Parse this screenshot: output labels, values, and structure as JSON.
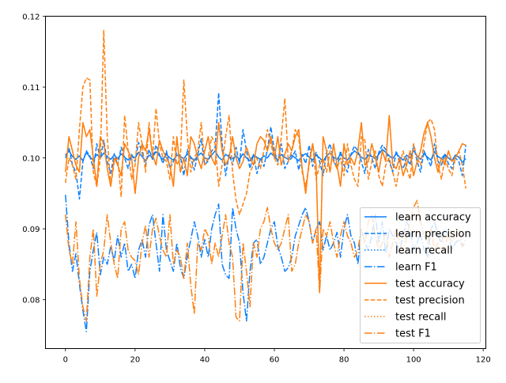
{
  "chart_data": {
    "type": "line",
    "title": "",
    "xlabel": "",
    "ylabel": "",
    "xlim": [
      -5.75,
      120.75
    ],
    "ylim": [
      0.0731,
      0.12
    ],
    "x_start": 0,
    "x_step": 1,
    "xticks": [
      0,
      20,
      40,
      60,
      80,
      100,
      120
    ],
    "xtick_labels": [
      "0",
      "20",
      "40",
      "60",
      "80",
      "100",
      "120"
    ],
    "yticks": [
      0.08,
      0.09,
      0.1,
      0.11,
      0.12
    ],
    "ytick_labels": [
      "0.08",
      "0.09",
      "0.10",
      "0.11",
      "0.12"
    ],
    "grid": false,
    "legend_position": "lower-right",
    "colors": {
      "learn": "#0a7fff",
      "test": "#ff7f0e"
    },
    "series": [
      {
        "name": "learn accuracy",
        "group": "learn",
        "style": "solid",
        "values": [
          0.1004,
          0.101,
          0.1002,
          0.0998,
          0.1003,
          0.0996,
          0.1008,
          0.1001,
          0.0997,
          0.1005,
          0.1,
          0.1007,
          0.1002,
          0.0998,
          0.1004,
          0.0999,
          0.1006,
          0.1001,
          0.0997,
          0.1003,
          0.1,
          0.1008,
          0.1002,
          0.0996,
          0.1004,
          0.1001,
          0.1009,
          0.1003,
          0.0998,
          0.1005,
          0.1,
          0.0997,
          0.1004,
          0.1002,
          0.0999,
          0.1006,
          0.1001,
          0.0996,
          0.1003,
          0.1007,
          0.1,
          0.0998,
          0.1004,
          0.101,
          0.1001,
          0.0997,
          0.1005,
          0.1002,
          0.0999,
          0.1003,
          0.0998,
          0.1006,
          0.1,
          0.0996,
          0.1004,
          0.1001,
          0.0998,
          0.1003,
          0.1,
          0.1007,
          0.1002,
          0.0997,
          0.1005,
          0.1001,
          0.0998,
          0.1004,
          0.1,
          0.0996,
          0.1003,
          0.1006,
          0.1001,
          0.0997,
          0.1004,
          0.1,
          0.0995,
          0.1003,
          0.1007,
          0.1001,
          0.0998,
          0.1005,
          0.1,
          0.0997,
          0.1004,
          0.101,
          0.1006,
          0.1001,
          0.0998,
          0.1004,
          0.1002,
          0.0999,
          0.1005,
          0.1012,
          0.1008,
          0.1003,
          0.0999,
          0.1006,
          0.1001,
          0.0997,
          0.1004,
          0.1,
          0.1011,
          0.1003,
          0.0998,
          0.1006,
          0.1001,
          0.0997,
          0.1009,
          0.1002,
          0.0999,
          0.1005,
          0.1,
          0.0996,
          0.1004,
          0.1001,
          0.0994,
          0.0999
        ]
      },
      {
        "name": "learn precision",
        "group": "learn",
        "style": "dashed",
        "values": [
          0.1,
          0.1015,
          0.099,
          0.098,
          0.0942,
          0.0995,
          0.101,
          0.1003,
          0.0985,
          0.102,
          0.0999,
          0.1025,
          0.0995,
          0.0978,
          0.1006,
          0.099,
          0.1015,
          0.1,
          0.0985,
          0.1005,
          0.0995,
          0.1022,
          0.1008,
          0.099,
          0.1012,
          0.0998,
          0.1018,
          0.1005,
          0.0992,
          0.101,
          0.0985,
          0.0995,
          0.1008,
          0.1003,
          0.0975,
          0.1012,
          0.1,
          0.0983,
          0.1005,
          0.1027,
          0.099,
          0.0996,
          0.101,
          0.1015,
          0.1092,
          0.102,
          0.0975,
          0.1005,
          0.099,
          0.1015,
          0.0992,
          0.104,
          0.101,
          0.0985,
          0.1005,
          0.0978,
          0.1,
          0.0988,
          0.1012,
          0.1044,
          0.101,
          0.0995,
          0.102,
          0.0985,
          0.0995,
          0.1,
          0.101,
          0.0983,
          0.1005,
          0.0992,
          0.1018,
          0.0988,
          0.1008,
          0.0995,
          0.0975,
          0.1008,
          0.102,
          0.0998,
          0.0985,
          0.101,
          0.099,
          0.098,
          0.1005,
          0.1017,
          0.101,
          0.0995,
          0.0978,
          0.1012,
          0.1,
          0.0985,
          0.1008,
          0.1018,
          0.1012,
          0.0995,
          0.098,
          0.101,
          0.0993,
          0.0985,
          0.1,
          0.099,
          0.1018,
          0.0995,
          0.098,
          0.101,
          0.0998,
          0.0988,
          0.102,
          0.0995,
          0.099,
          0.1005,
          0.0992,
          0.0985,
          0.1,
          0.0995,
          0.0975,
          0.1018
        ]
      },
      {
        "name": "learn recall",
        "group": "learn",
        "style": "dotted",
        "values": [
          0.1004,
          0.101,
          0.1002,
          0.0998,
          0.1003,
          0.0996,
          0.1008,
          0.1001,
          0.0997,
          0.1005,
          0.1,
          0.1007,
          0.1002,
          0.0998,
          0.1004,
          0.0999,
          0.1006,
          0.1001,
          0.0997,
          0.1003,
          0.1,
          0.1008,
          0.1002,
          0.0996,
          0.1004,
          0.1001,
          0.1009,
          0.1003,
          0.0998,
          0.1005,
          0.1,
          0.0997,
          0.1004,
          0.1002,
          0.0999,
          0.1006,
          0.1001,
          0.0996,
          0.1003,
          0.1007,
          0.1,
          0.0998,
          0.1004,
          0.101,
          0.1001,
          0.0997,
          0.1005,
          0.1002,
          0.0999,
          0.1003,
          0.0998,
          0.1006,
          0.1,
          0.0996,
          0.1004,
          0.1001,
          0.0998,
          0.1003,
          0.1,
          0.1007,
          0.1002,
          0.0997,
          0.1005,
          0.1001,
          0.0998,
          0.1004,
          0.1,
          0.0996,
          0.1003,
          0.1006,
          0.1001,
          0.0997,
          0.1004,
          0.1,
          0.0995,
          0.1003,
          0.1007,
          0.1001,
          0.0998,
          0.1005,
          0.1,
          0.0997,
          0.1004,
          0.101,
          0.1006,
          0.1001,
          0.0998,
          0.1004,
          0.1002,
          0.0999,
          0.1005,
          0.1012,
          0.1008,
          0.1003,
          0.0999,
          0.1006,
          0.1001,
          0.0997,
          0.1004,
          0.1,
          0.1011,
          0.1003,
          0.0998,
          0.1006,
          0.1001,
          0.0997,
          0.1009,
          0.1002,
          0.0999,
          0.1005,
          0.1,
          0.0996,
          0.1004,
          0.1001,
          0.0994,
          0.0999
        ]
      },
      {
        "name": "learn F1",
        "group": "learn",
        "style": "dashdot",
        "values": [
          0.0948,
          0.088,
          0.084,
          0.0865,
          0.0822,
          0.0785,
          0.0755,
          0.084,
          0.087,
          0.0895,
          0.0835,
          0.086,
          0.085,
          0.0875,
          0.0855,
          0.089,
          0.086,
          0.088,
          0.084,
          0.085,
          0.083,
          0.087,
          0.0885,
          0.086,
          0.0905,
          0.092,
          0.088,
          0.084,
          0.092,
          0.087,
          0.0855,
          0.084,
          0.088,
          0.0845,
          0.083,
          0.0862,
          0.0885,
          0.091,
          0.089,
          0.086,
          0.0885,
          0.086,
          0.09,
          0.092,
          0.0935,
          0.085,
          0.0835,
          0.083,
          0.093,
          0.09,
          0.088,
          0.081,
          0.077,
          0.084,
          0.088,
          0.0885,
          0.085,
          0.086,
          0.088,
          0.09,
          0.091,
          0.0875,
          0.086,
          0.084,
          0.0845,
          0.086,
          0.089,
          0.0905,
          0.092,
          0.093,
          0.091,
          0.088,
          0.09,
          0.091,
          0.087,
          0.089,
          0.087,
          0.088,
          0.0895,
          0.086,
          0.09,
          0.092,
          0.089,
          0.088,
          0.085,
          0.09,
          0.088,
          0.087,
          0.089,
          0.092,
          0.088,
          0.091,
          0.0865,
          0.09,
          0.089,
          0.088,
          0.087,
          0.089,
          0.091,
          0.09,
          0.087,
          0.088,
          0.0895,
          0.087,
          0.086,
          0.09,
          0.091,
          0.089,
          0.088,
          0.09,
          0.089,
          0.087,
          0.088,
          0.0885,
          0.0875,
          0.0885
        ]
      },
      {
        "name": "test accuracy",
        "group": "test",
        "style": "solid",
        "values": [
          0.098,
          0.103,
          0.101,
          0.099,
          0.098,
          0.105,
          0.103,
          0.104,
          0.1,
          0.096,
          0.103,
          0.102,
          0.0985,
          0.096,
          0.1,
          0.099,
          0.0975,
          0.102,
          0.101,
          0.1,
          0.095,
          0.1,
          0.102,
          0.101,
          0.104,
          0.1005,
          0.099,
          0.1025,
          0.101,
          0.1,
          0.099,
          0.096,
          0.103,
          0.098,
          0.1,
          0.0975,
          0.103,
          0.102,
          0.1,
          0.0985,
          0.101,
          0.103,
          0.1,
          0.099,
          0.105,
          0.101,
          0.099,
          0.1,
          0.103,
          0.1,
          0.0985,
          0.0995,
          0.1015,
          0.1,
          0.099,
          0.102,
          0.103,
          0.1025,
          0.101,
          0.103,
          0.1,
          0.103,
          0.099,
          0.1005,
          0.102,
          0.101,
          0.103,
          0.104,
          0.0985,
          0.095,
          0.0995,
          0.102,
          0.099,
          0.081,
          0.103,
          0.101,
          0.098,
          0.102,
          0.099,
          0.096,
          0.102,
          0.099,
          0.1,
          0.099,
          0.101,
          0.105,
          0.099,
          0.0995,
          0.102,
          0.1,
          0.098,
          0.101,
          0.0995,
          0.106,
          0.099,
          0.0985,
          0.1,
          0.0975,
          0.099,
          0.101,
          0.0975,
          0.0995,
          0.101,
          0.1035,
          0.105,
          0.103,
          0.1,
          0.098,
          0.1,
          0.099,
          0.101,
          0.0995,
          0.1,
          0.101,
          0.102,
          0.1018
        ]
      },
      {
        "name": "test precision",
        "group": "test",
        "style": "dashed",
        "values": [
          0.0965,
          0.1,
          0.099,
          0.097,
          0.104,
          0.11,
          0.1113,
          0.111,
          0.098,
          0.096,
          0.1,
          0.118,
          0.103,
          0.096,
          0.0995,
          0.1,
          0.0945,
          0.106,
          0.101,
          0.097,
          0.099,
          0.105,
          0.102,
          0.098,
          0.105,
          0.1,
          0.107,
          0.102,
          0.1,
          0.0995,
          0.097,
          0.103,
          0.099,
          0.1,
          0.111,
          0.103,
          0.098,
          0.1,
          0.101,
          0.105,
          0.099,
          0.1,
          0.103,
          0.102,
          0.096,
          0.099,
          0.103,
          0.106,
          0.098,
          0.094,
          0.092,
          0.0935,
          0.095,
          0.098,
          0.099,
          0.1,
          0.0985,
          0.101,
          0.104,
          0.102,
          0.1,
          0.099,
          0.103,
          0.1084,
          0.0995,
          0.101,
          0.104,
          0.103,
          0.098,
          0.096,
          0.099,
          0.102,
          0.097,
          0.099,
          0.1,
          0.098,
          0.101,
          0.0995,
          0.0985,
          0.1,
          0.0975,
          0.102,
          0.099,
          0.097,
          0.096,
          0.103,
          0.1025,
          0.097,
          0.0995,
          0.101,
          0.0975,
          0.096,
          0.099,
          0.1,
          0.098,
          0.096,
          0.099,
          0.101,
          0.0985,
          0.097,
          0.102,
          0.1,
          0.099,
          0.102,
          0.105,
          0.1055,
          0.104,
          0.099,
          0.097,
          0.1,
          0.0985,
          0.0975,
          0.1,
          0.101,
          0.099,
          0.0957
        ]
      },
      {
        "name": "test recall",
        "group": "test",
        "style": "dotted",
        "values": [
          0.098,
          0.103,
          0.101,
          0.099,
          0.098,
          0.105,
          0.103,
          0.104,
          0.1,
          0.096,
          0.103,
          0.102,
          0.0985,
          0.096,
          0.1,
          0.099,
          0.0975,
          0.102,
          0.101,
          0.1,
          0.095,
          0.1,
          0.102,
          0.101,
          0.104,
          0.1005,
          0.099,
          0.1025,
          0.101,
          0.1,
          0.099,
          0.096,
          0.103,
          0.098,
          0.1,
          0.0975,
          0.103,
          0.102,
          0.1,
          0.0985,
          0.101,
          0.103,
          0.1,
          0.099,
          0.105,
          0.101,
          0.099,
          0.1,
          0.103,
          0.1,
          0.0985,
          0.0995,
          0.1015,
          0.1,
          0.099,
          0.102,
          0.103,
          0.1025,
          0.101,
          0.103,
          0.1,
          0.103,
          0.099,
          0.1005,
          0.102,
          0.101,
          0.103,
          0.104,
          0.0985,
          0.095,
          0.0995,
          0.102,
          0.099,
          0.081,
          0.103,
          0.101,
          0.098,
          0.102,
          0.099,
          0.096,
          0.102,
          0.099,
          0.1,
          0.099,
          0.101,
          0.105,
          0.099,
          0.0995,
          0.102,
          0.1,
          0.098,
          0.101,
          0.0995,
          0.106,
          0.099,
          0.0985,
          0.1,
          0.0975,
          0.099,
          0.101,
          0.0975,
          0.0995,
          0.101,
          0.1035,
          0.105,
          0.103,
          0.1,
          0.098,
          0.1,
          0.099,
          0.101,
          0.0995,
          0.1,
          0.101,
          0.102,
          0.1018
        ]
      },
      {
        "name": "test F1",
        "group": "test",
        "style": "dashdot",
        "values": [
          0.092,
          0.087,
          0.085,
          0.091,
          0.083,
          0.079,
          0.077,
          0.086,
          0.09,
          0.0805,
          0.085,
          0.087,
          0.092,
          0.088,
          0.085,
          0.083,
          0.09,
          0.091,
          0.087,
          0.086,
          0.0855,
          0.0835,
          0.088,
          0.0905,
          0.086,
          0.09,
          0.0915,
          0.089,
          0.087,
          0.086,
          0.092,
          0.085,
          0.087,
          0.086,
          0.083,
          0.088,
          0.082,
          0.078,
          0.088,
          0.087,
          0.09,
          0.089,
          0.085,
          0.088,
          0.086,
          0.089,
          0.092,
          0.088,
          0.086,
          0.0775,
          0.077,
          0.088,
          0.084,
          0.079,
          0.088,
          0.086,
          0.09,
          0.091,
          0.093,
          0.09,
          0.088,
          0.087,
          0.088,
          0.09,
          0.092,
          0.084,
          0.085,
          0.088,
          0.09,
          0.092,
          0.091,
          0.088,
          0.09,
          0.081,
          0.09,
          0.089,
          0.091,
          0.088,
          0.086,
          0.089,
          0.091,
          0.089,
          0.088,
          0.086,
          0.087,
          0.09,
          0.088,
          0.091,
          0.092,
          0.089,
          0.087,
          0.088,
          0.0895,
          0.086,
          0.088,
          0.09,
          0.088,
          0.087,
          0.089,
          0.091,
          0.093,
          0.094,
          0.091,
          0.089,
          0.088,
          0.09,
          0.087,
          0.088,
          0.089,
          0.087,
          0.0895,
          0.088,
          0.089,
          0.09,
          0.0875,
          0.088
        ]
      }
    ]
  }
}
